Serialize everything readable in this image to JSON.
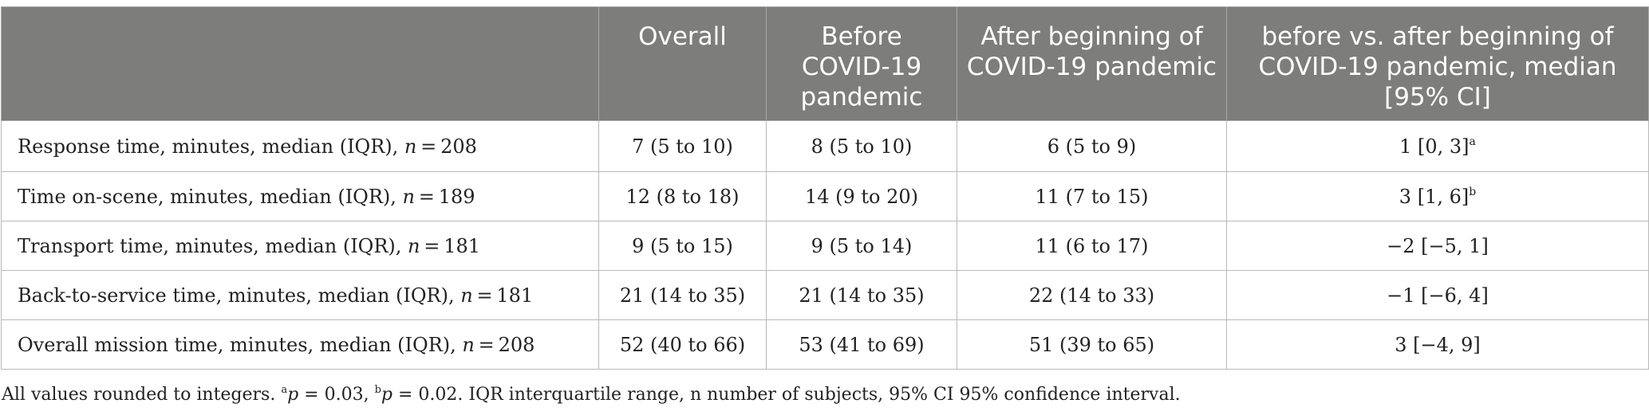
{
  "table": {
    "columns": [
      "",
      "Overall",
      "Before COVID-19 pandemic",
      "After beginning of COVID-19 pandemic",
      "before vs. after beginning of COVID-19 pandemic, median [95% CI]"
    ],
    "rows": [
      {
        "label": "Response time, minutes, median (IQR), ",
        "n": "208",
        "overall": "7 (5 to 10)",
        "before": "8 (5 to 10)",
        "after": "6 (5 to 9)",
        "diff": "1 [0, 3]",
        "sup": "a"
      },
      {
        "label": "Time on-scene, minutes, median (IQR), ",
        "n": "189",
        "overall": "12 (8 to 18)",
        "before": "14 (9 to 20)",
        "after": "11 (7 to 15)",
        "diff": "3 [1, 6]",
        "sup": "b"
      },
      {
        "label": "Transport time, minutes, median (IQR), ",
        "n": "181",
        "overall": "9 (5 to 15)",
        "before": "9 (5 to 14)",
        "after": "11 (6 to 17)",
        "diff": "−2 [−5, 1]",
        "sup": ""
      },
      {
        "label": "Back-to-service time, minutes, median (IQR), ",
        "n": "181",
        "overall": "21 (14 to 35)",
        "before": "21 (14 to 35)",
        "after": "22 (14 to 33)",
        "diff": "−1 [−6, 4]",
        "sup": ""
      },
      {
        "label": "Overall mission time, minutes, median (IQR), ",
        "n": "208",
        "overall": "52 (40 to 66)",
        "before": "53 (41 to 69)",
        "after": "51 (39 to 65)",
        "diff": "3 [−4, 9]",
        "sup": ""
      }
    ]
  },
  "footnote": {
    "lead": "All values rounded to integers. ",
    "a_sup": "a",
    "a_text": " = 0.03, ",
    "b_sup": "b",
    "b_text": " = 0.02. IQR interquartile range, n number of subjects, 95% CI 95% confidence interval.",
    "p_symbol": "p"
  }
}
